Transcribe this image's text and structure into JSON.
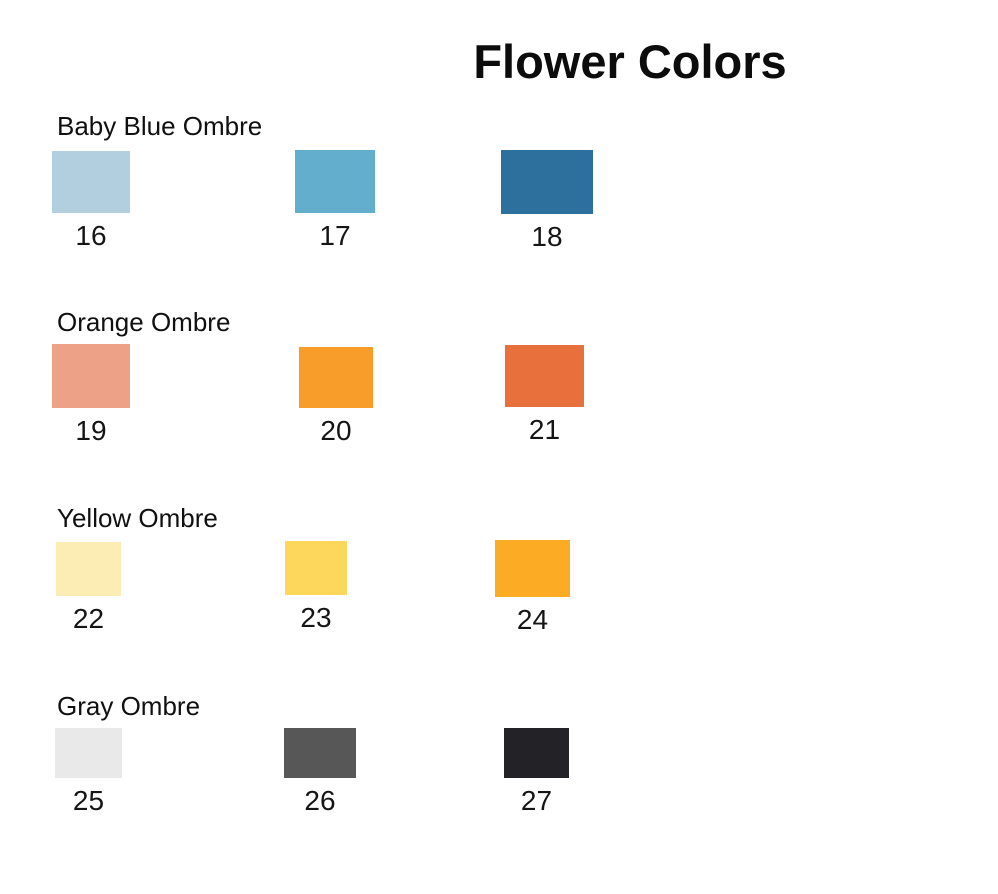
{
  "title": "Flower Colors",
  "groups": [
    {
      "label": "Baby Blue Ombre",
      "swatches": [
        {
          "number": "16",
          "color": "#b2cfe0"
        },
        {
          "number": "17",
          "color": "#64aecd"
        },
        {
          "number": "18",
          "color": "#2d6f9d"
        }
      ]
    },
    {
      "label": "Orange Ombre",
      "swatches": [
        {
          "number": "19",
          "color": "#eda287"
        },
        {
          "number": "20",
          "color": "#f89c2a"
        },
        {
          "number": "21",
          "color": "#e8703d"
        }
      ]
    },
    {
      "label": "Yellow Ombre",
      "swatches": [
        {
          "number": "22",
          "color": "#fbedb3"
        },
        {
          "number": "23",
          "color": "#fdd75c"
        },
        {
          "number": "24",
          "color": "#fcab24"
        }
      ]
    },
    {
      "label": "Gray Ombre",
      "swatches": [
        {
          "number": "25",
          "color": "#e9e9e9"
        },
        {
          "number": "26",
          "color": "#575757"
        },
        {
          "number": "27",
          "color": "#232327"
        }
      ]
    }
  ]
}
